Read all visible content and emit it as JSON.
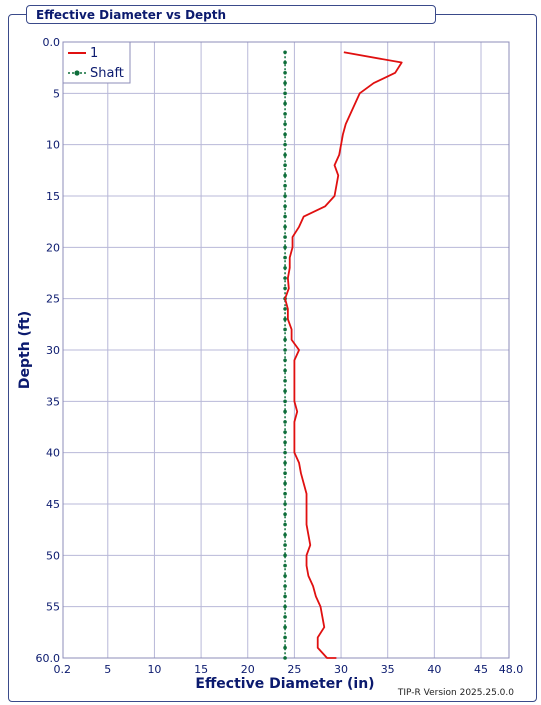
{
  "window": {
    "title": "Effective Diameter vs Depth"
  },
  "footer": {
    "version": "TIP-R Version 2025.25.0.0"
  },
  "colors": {
    "series_1": "#e01010",
    "shaft": "#0e6e3a",
    "axis_text": "#0b1a6e",
    "grid": "#b8b8d8"
  },
  "chart_data": {
    "type": "line",
    "title": "Effective Diameter vs Depth",
    "xlabel": "Effective Diameter (in)",
    "ylabel": "Depth (ft)",
    "xlim": [
      0.2,
      48.0
    ],
    "ylim": [
      0.0,
      60.0
    ],
    "y_inverted": true,
    "grid": true,
    "legend": "top-left",
    "x_ticks": [
      "0.2",
      "5",
      "10",
      "15",
      "20",
      "25",
      "30",
      "35",
      "40",
      "45",
      "48.0"
    ],
    "y_ticks": [
      "0.0",
      "5",
      "10",
      "15",
      "20",
      "25",
      "30",
      "35",
      "40",
      "45",
      "50",
      "55",
      "60.0"
    ],
    "series": [
      {
        "name": "1",
        "x": [
          30.3,
          36.5,
          35.8,
          33.5,
          32.0,
          31.5,
          31.0,
          30.5,
          30.2,
          30.0,
          29.8,
          29.3,
          29.7,
          29.5,
          29.3,
          28.3,
          26.0,
          25.5,
          24.8,
          24.8,
          24.5,
          24.5,
          24.3,
          24.4,
          24.0,
          24.3,
          24.3,
          24.7,
          24.7,
          25.5,
          25.0,
          25.0,
          25.0,
          25.0,
          25.0,
          25.3,
          25.0,
          25.0,
          25.0,
          25.0,
          25.5,
          25.7,
          26.0,
          26.3,
          26.3,
          26.3,
          26.3,
          26.5,
          26.7,
          26.3,
          26.3,
          26.5,
          27.0,
          27.3,
          27.8,
          28.0,
          28.2,
          27.5,
          27.5,
          28.5,
          29.5
        ],
        "y": [
          1.0,
          2.0,
          3.0,
          4.0,
          5.0,
          6.0,
          7.0,
          8.0,
          9.0,
          10.0,
          11.0,
          12.0,
          13.0,
          14.0,
          15.0,
          16.0,
          17.0,
          18.0,
          19.0,
          20.0,
          21.0,
          22.0,
          23.0,
          24.0,
          25.0,
          26.0,
          27.0,
          28.0,
          29.0,
          30.0,
          31.0,
          32.0,
          33.0,
          34.0,
          35.0,
          36.0,
          37.0,
          38.0,
          39.0,
          40.0,
          41.0,
          42.0,
          43.0,
          44.0,
          45.0,
          46.0,
          47.0,
          48.0,
          49.0,
          50.0,
          51.0,
          52.0,
          53.0,
          54.0,
          55.0,
          56.0,
          57.0,
          58.0,
          59.0,
          60.0,
          60.0
        ]
      },
      {
        "name": "Shaft",
        "x": [
          24.0,
          24.0,
          24.0,
          24.0,
          24.0,
          24.0,
          24.0,
          24.0,
          24.0,
          24.0,
          24.0,
          24.0,
          24.0,
          24.0,
          24.0,
          24.0,
          24.0,
          24.0,
          24.0,
          24.0,
          24.0,
          24.0,
          24.0,
          24.0,
          24.0,
          24.0,
          24.0,
          24.0,
          24.0,
          24.0,
          24.0,
          24.0,
          24.0,
          24.0,
          24.0,
          24.0,
          24.0,
          24.0,
          24.0,
          24.0,
          24.0,
          24.0,
          24.0,
          24.0,
          24.0,
          24.0,
          24.0,
          24.0,
          24.0,
          24.0,
          24.0,
          24.0,
          24.0,
          24.0,
          24.0,
          24.0,
          24.0,
          24.0,
          24.0,
          24.0
        ],
        "y": [
          1.0,
          2.0,
          3.0,
          4.0,
          5.0,
          6.0,
          7.0,
          8.0,
          9.0,
          10.0,
          11.0,
          12.0,
          13.0,
          14.0,
          15.0,
          16.0,
          17.0,
          18.0,
          19.0,
          20.0,
          21.0,
          22.0,
          23.0,
          24.0,
          25.0,
          26.0,
          27.0,
          28.0,
          29.0,
          30.0,
          31.0,
          32.0,
          33.0,
          34.0,
          35.0,
          36.0,
          37.0,
          38.0,
          39.0,
          40.0,
          41.0,
          42.0,
          43.0,
          44.0,
          45.0,
          46.0,
          47.0,
          48.0,
          49.0,
          50.0,
          51.0,
          52.0,
          53.0,
          54.0,
          55.0,
          56.0,
          57.0,
          58.0,
          59.0,
          60.0
        ]
      }
    ]
  }
}
